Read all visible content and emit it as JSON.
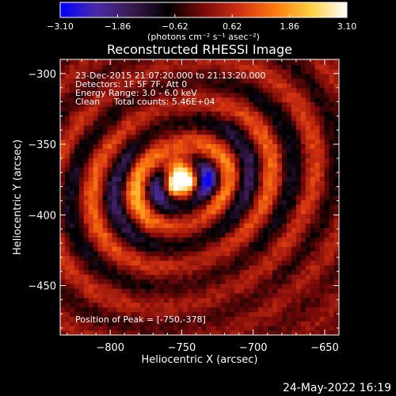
{
  "chart_data": {
    "type": "heatmap",
    "title": "Reconstructed RHESSI Image",
    "xlabel": "Heliocentric X (arcsec)",
    "ylabel": "Heliocentric Y (arcsec)",
    "xlim": [
      -835,
      -640
    ],
    "ylim": [
      -485,
      -290
    ],
    "x_ticks": [
      -800,
      -750,
      -700,
      -650
    ],
    "y_ticks": [
      -300,
      -350,
      -400,
      -450
    ],
    "x_tick_labels": [
      "−800",
      "−750",
      "−700",
      "−650"
    ],
    "y_tick_labels": [
      "−300",
      "−350",
      "−400",
      "−450"
    ],
    "colorbar": {
      "min": -3.1,
      "max": 3.1,
      "ticks": [
        -3.1,
        -1.86,
        -0.62,
        0.62,
        1.86,
        3.1
      ],
      "tick_labels": [
        "−3.10",
        "−1.86",
        "−0.62",
        "0.62",
        "1.86",
        "3.10"
      ],
      "units_label": "(photons cm⁻² s⁻¹ asec⁻²)",
      "colors": [
        "#0000ff",
        "#4a2aa8",
        "#3a1a50",
        "#000000",
        "#7a0a0a",
        "#d03010",
        "#ff7a10",
        "#ffd040",
        "#ffffff"
      ]
    },
    "peak": [
      -750,
      -378
    ],
    "annotations": [
      "23-Dec-2015 21:07:20.000 to 21:13:20.000",
      "Detectors: 1F 5F 7F, Att 0",
      "Energy Range: 3.0 - 6.0 keV",
      "Clean     Total counts: 5.46E+04",
      "Position of Peak = [-750,-378]"
    ]
  },
  "footer": {
    "timestamp": "24-May-2022 16:19"
  }
}
